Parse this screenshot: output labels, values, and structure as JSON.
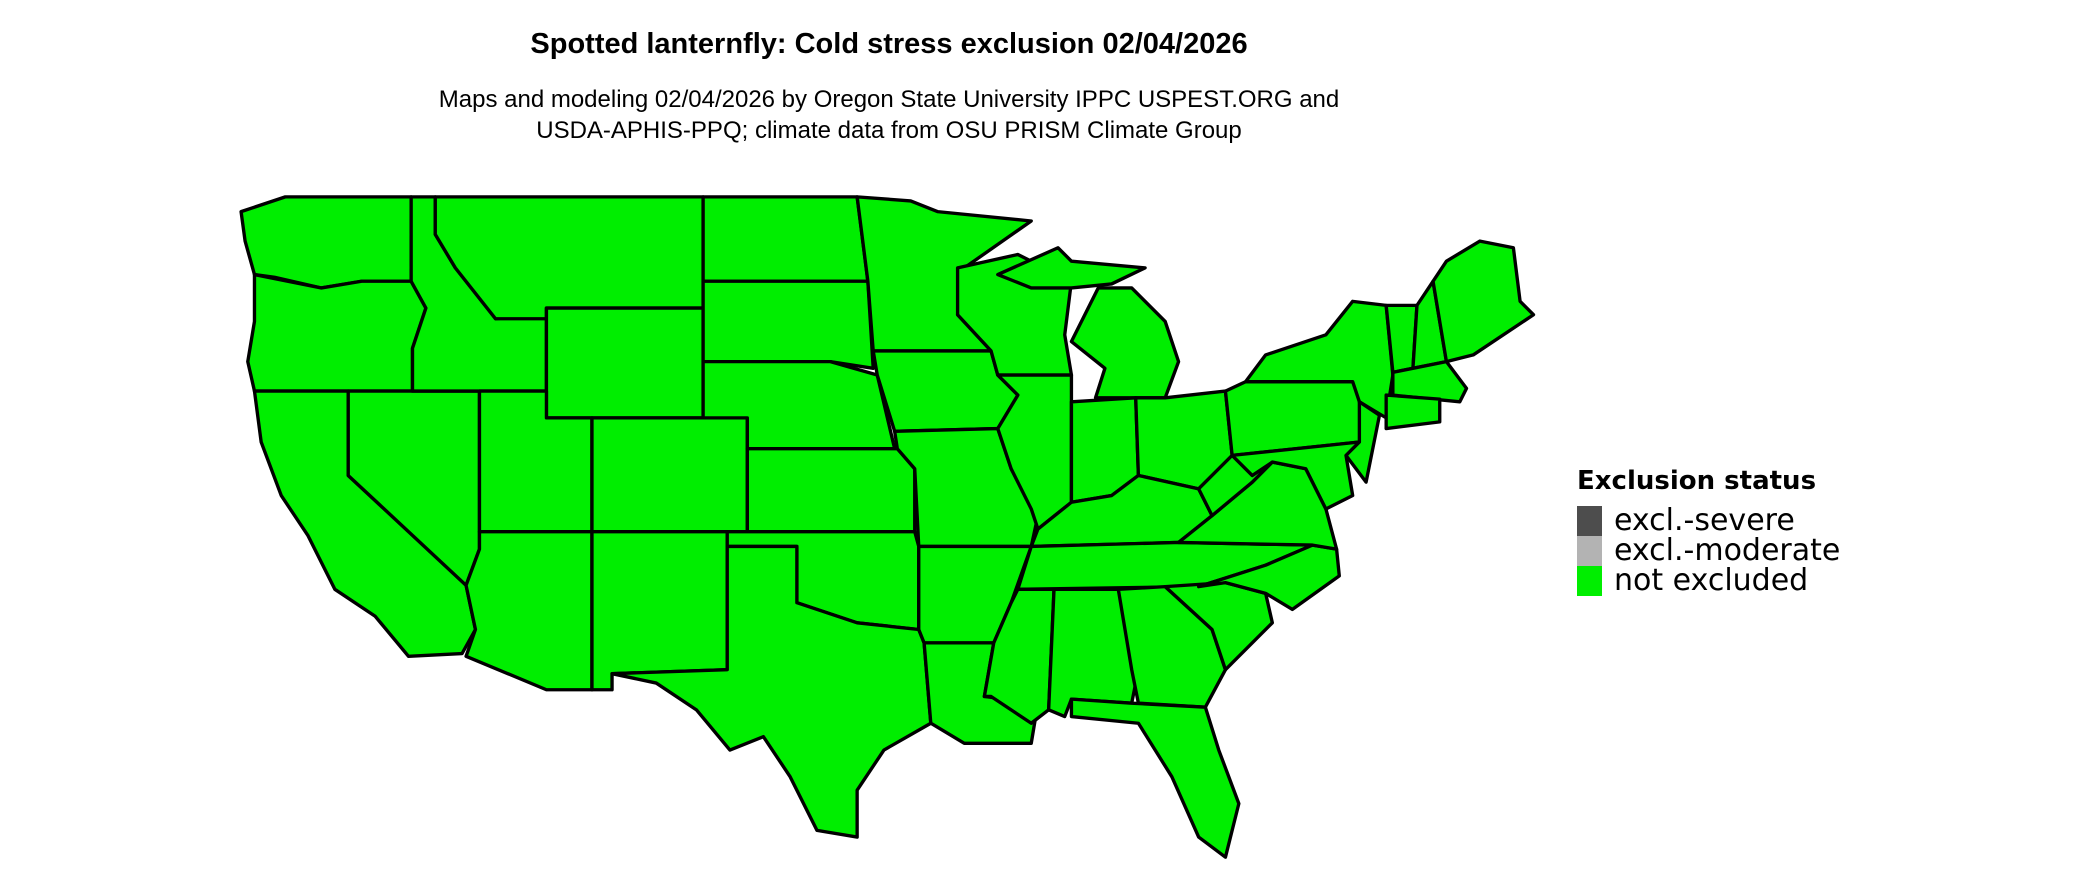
{
  "title": "Spotted lanternfly: Cold stress exclusion 02/04/2026",
  "subtitle_lines": [
    "Maps and modeling 02/04/2026 by Oregon State University IPPC USPEST.ORG and",
    "USDA-APHIS-PPQ; climate data from OSU PRISM Climate Group"
  ],
  "map": {
    "region": "Contiguous United States",
    "all_states_status": "not excluded"
  },
  "legend": {
    "title": "Exclusion status",
    "items": [
      {
        "label": "excl.-severe",
        "color": "#4d4d4d"
      },
      {
        "label": "excl.-moderate",
        "color": "#b3b3b3"
      },
      {
        "label": "not excluded",
        "color": "#00ee00"
      }
    ]
  }
}
